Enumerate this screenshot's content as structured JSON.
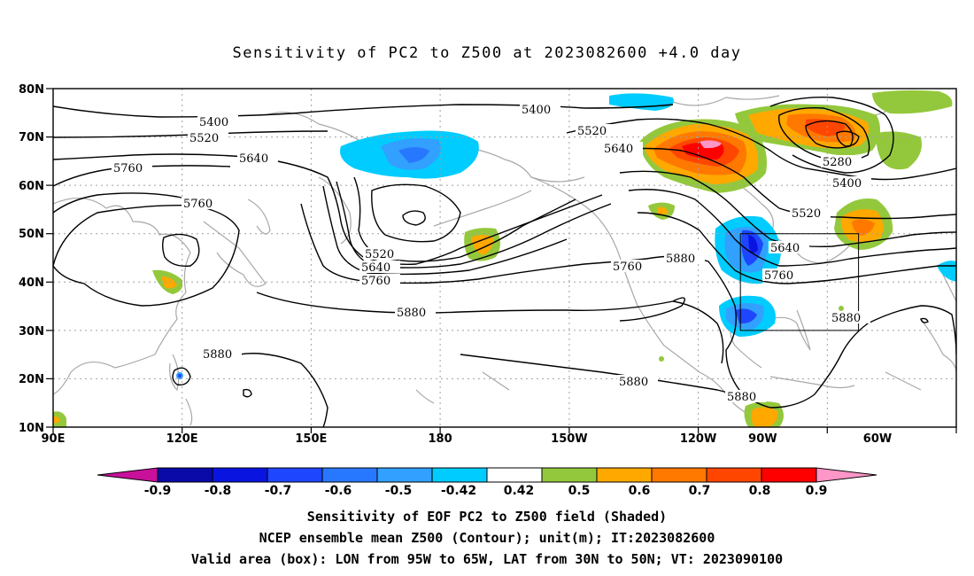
{
  "title": "Sensitivity of PC2 to Z500 at 2023082600 +4.0 day",
  "lat_labels": [
    "80N",
    "70N",
    "60N",
    "50N",
    "40N",
    "30N",
    "20N",
    "10N"
  ],
  "lon_labels": [
    "90E",
    "120E",
    "150E",
    "180",
    "150W",
    "120W",
    "90W",
    "60W"
  ],
  "contour_labels": [
    "5400",
    "5520",
    "5640",
    "5760",
    "5760",
    "5400",
    "5520",
    "5640",
    "5520",
    "5640",
    "5760",
    "5880",
    "5760",
    "5880",
    "5880",
    "5880",
    "5880",
    "5280",
    "5400",
    "5520",
    "5640",
    "5760",
    "5880"
  ],
  "colorbar": {
    "ticks": [
      "-0.9",
      "-0.8",
      "-0.7",
      "-0.6",
      "-0.5",
      "-0.42",
      "0.42",
      "0.5",
      "0.6",
      "0.7",
      "0.8",
      "0.9"
    ],
    "colors": [
      "#c8109a",
      "#0a0aa8",
      "#0a14e0",
      "#1e46ff",
      "#2878ff",
      "#32a0ff",
      "#00ccff",
      "#ffffff",
      "#94c83c",
      "#ffa800",
      "#ff7800",
      "#ff4600",
      "#ff0000",
      "#ff96c8"
    ]
  },
  "valid_box": {
    "lon": [
      "95W",
      "65W"
    ],
    "lat": [
      "30N",
      "50N"
    ]
  },
  "captions": [
    "Sensitivity of EOF PC2 to Z500 field (Shaded)",
    "NCEP ensemble mean Z500 (Contour); unit(m); IT:2023082600",
    "Valid area (box): LON from 95W to 65W, LAT from 30N to 50N; VT: 2023090100"
  ]
}
